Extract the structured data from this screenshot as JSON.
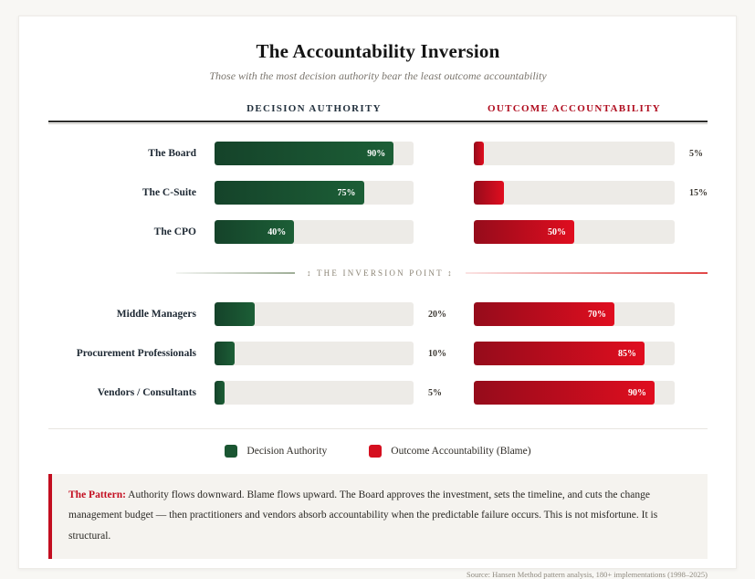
{
  "chart": {
    "title": "The Accountability Inversion",
    "subtitle": "Those with the most decision authority bear the least outcome accountability",
    "columns": [
      {
        "label": "DECISION AUTHORITY",
        "color": "#22303d"
      },
      {
        "label": "OUTCOME ACCOUNTABILITY",
        "color": "#b00d1f"
      }
    ],
    "inversion_label": "↕ THE INVERSION POINT ↕"
  },
  "chart_data": {
    "type": "bar",
    "orientation": "horizontal",
    "categories": [
      "The Board",
      "The C-Suite",
      "The CPO",
      "Middle Managers",
      "Procurement Professionals",
      "Vendors / Consultants"
    ],
    "series": [
      {
        "name": "Decision Authority",
        "values": [
          90,
          75,
          40,
          20,
          10,
          5
        ],
        "gradient_start": "#15432a",
        "gradient_end": "#1c5e36"
      },
      {
        "name": "Outcome Accountability (Blame)",
        "values": [
          5,
          15,
          50,
          70,
          85,
          90
        ],
        "gradient_start": "#950c1b",
        "gradient_end": "#e00d1f"
      }
    ],
    "xlim": [
      0,
      100
    ],
    "value_suffix": "%",
    "inside_label_min": 30,
    "group_break_after_index": 2,
    "annotation": "↕ THE INVERSION POINT ↕",
    "legend_position": "bottom",
    "grid": false,
    "track_color": "#edebe7"
  },
  "legend": {
    "items": [
      {
        "label": "Decision Authority",
        "color": "#1a5632"
      },
      {
        "label": "Outcome Accountability (Blame)",
        "color": "#d50f1f"
      }
    ]
  },
  "pattern": {
    "lead": "The Pattern:",
    "body": " Authority flows downward. Blame flows upward. The Board approves the investment, sets the timeline, and cuts the change management budget — then practitioners and vendors absorb accountability when the predictable failure occurs. This is not misfortune. It is structural."
  },
  "source": "Source: Hansen Method pattern analysis, 180+ implementations (1998–2025)"
}
